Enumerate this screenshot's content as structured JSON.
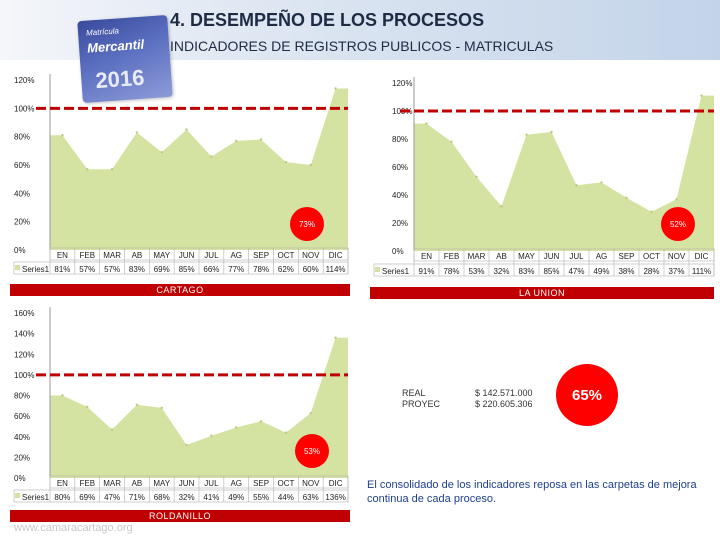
{
  "title": "4. DESEMPEÑO DE LOS PROCESOS",
  "subtitle": "INDICADORES DE REGISTROS PUBLICOS - MATRICULAS",
  "logo": {
    "line1": "Matrícula",
    "line2": "Mercantil",
    "year": "2016"
  },
  "colors": {
    "area": "#d5e3a2",
    "target": "#c00000",
    "badge": "#ff0000",
    "caption": "#c00000"
  },
  "chart_data": [
    {
      "type": "area",
      "name": "CARTAGO",
      "categories": [
        "EN",
        "FEB",
        "MAR",
        "AB",
        "MAY",
        "JUN",
        "JUL",
        "AG",
        "SEP",
        "OCT",
        "NOV",
        "DIC"
      ],
      "series": [
        {
          "name": "Series1",
          "values": [
            81,
            57,
            57,
            83,
            69,
            85,
            66,
            77,
            78,
            62,
            60,
            114
          ]
        }
      ],
      "value_labels": [
        "81%",
        "57%",
        "57%",
        "83%",
        "69%",
        "85%",
        "66%",
        "77%",
        "78%",
        "62%",
        "60%",
        "114%"
      ],
      "yticks": [
        "0%",
        "20%",
        "40%",
        "60%",
        "80%",
        "100%",
        "120%"
      ],
      "ylim": [
        0,
        120
      ],
      "target": 100,
      "badge": "73%"
    },
    {
      "type": "area",
      "name": "LA UNION",
      "categories": [
        "EN",
        "FEB",
        "MAR",
        "AB",
        "MAY",
        "JUN",
        "JUL",
        "AG",
        "SEP",
        "OCT",
        "NOV",
        "DIC"
      ],
      "series": [
        {
          "name": "Series1",
          "values": [
            91,
            78,
            53,
            32,
            83,
            85,
            47,
            49,
            38,
            28,
            37,
            111
          ]
        }
      ],
      "value_labels": [
        "91%",
        "78%",
        "53%",
        "32%",
        "83%",
        "85%",
        "47%",
        "49%",
        "38%",
        "28%",
        "37%",
        "111%"
      ],
      "yticks": [
        "0%",
        "20%",
        "40%",
        "60%",
        "80%",
        "100%",
        "120%"
      ],
      "ylim": [
        0,
        120
      ],
      "target": 100,
      "badge": "52%"
    },
    {
      "type": "area",
      "name": "ROLDANILLO",
      "categories": [
        "EN",
        "FEB",
        "MAR",
        "AB",
        "MAY",
        "JUN",
        "JUL",
        "AG",
        "SEP",
        "OCT",
        "NOV",
        "DIC"
      ],
      "series": [
        {
          "name": "Series1",
          "values": [
            80,
            69,
            47,
            71,
            68,
            32,
            41,
            49,
            55,
            44,
            63,
            136
          ]
        }
      ],
      "value_labels": [
        "80%",
        "69%",
        "47%",
        "71%",
        "68%",
        "32%",
        "41%",
        "49%",
        "55%",
        "44%",
        "63%",
        "136%"
      ],
      "yticks": [
        "0%",
        "20%",
        "40%",
        "60%",
        "80%",
        "100%",
        "120%",
        "140%",
        "160%"
      ],
      "ylim": [
        0,
        160
      ],
      "target": 100,
      "badge": "53%"
    }
  ],
  "budget": {
    "real_label": "REAL",
    "proyec_label": "PROYEC",
    "real_value": "$ 142.571.000",
    "proyec_value": "$ 220.605.306",
    "percent": "65%"
  },
  "summary": "El consolidado de los indicadores  reposa en las carpetas de mejora continua de cada proceso.",
  "watermark": "www.camaracartago.org"
}
